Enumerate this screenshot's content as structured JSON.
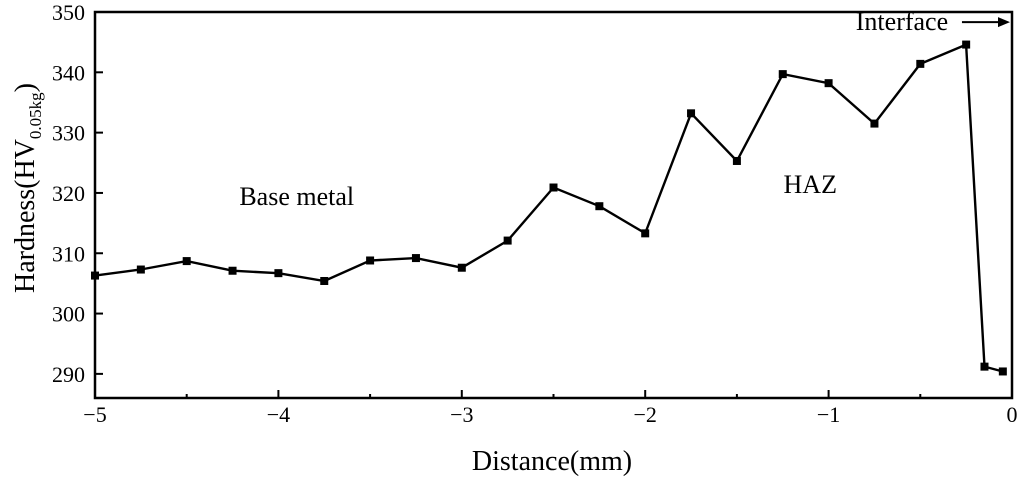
{
  "chart_data": {
    "type": "line",
    "xlabel": "Distance(mm)",
    "ylabel_main": "Hardness(HV",
    "ylabel_sub": "0.05kg",
    "ylabel_close": ")",
    "xlim": [
      -5,
      0
    ],
    "ylim": [
      286,
      350
    ],
    "xticks": [
      -5,
      -4,
      -3,
      -2,
      -1,
      0
    ],
    "xtick_labels": [
      "−5",
      "−4",
      "−3",
      "−2",
      "−1",
      "0"
    ],
    "yticks": [
      290,
      300,
      310,
      320,
      330,
      340,
      350
    ],
    "ytick_labels": [
      "290",
      "300",
      "310",
      "320",
      "330",
      "340",
      "350"
    ],
    "grid": false,
    "series": [
      {
        "marker": "square",
        "x": [
          -5.0,
          -4.75,
          -4.5,
          -4.25,
          -4.0,
          -3.75,
          -3.5,
          -3.25,
          -3.0,
          -2.75,
          -2.5,
          -2.25,
          -2.0,
          -1.75,
          -1.5,
          -1.25,
          -1.0,
          -0.75,
          -0.5,
          -0.25,
          -0.15,
          -0.05
        ],
        "y": [
          306.3,
          307.3,
          308.7,
          307.1,
          306.7,
          305.4,
          308.8,
          309.2,
          307.6,
          312.1,
          320.9,
          317.8,
          313.3,
          333.2,
          325.3,
          339.7,
          338.2,
          331.5,
          341.4,
          344.6,
          291.2,
          290.4
        ]
      }
    ],
    "annotations": [
      {
        "text": "Base metal",
        "x": -3.9,
        "y": 318
      },
      {
        "text": "HAZ",
        "x": -1.1,
        "y": 320
      },
      {
        "text": "Interface",
        "x": -0.6,
        "y": 347,
        "arrow_to_x": 0
      }
    ]
  }
}
